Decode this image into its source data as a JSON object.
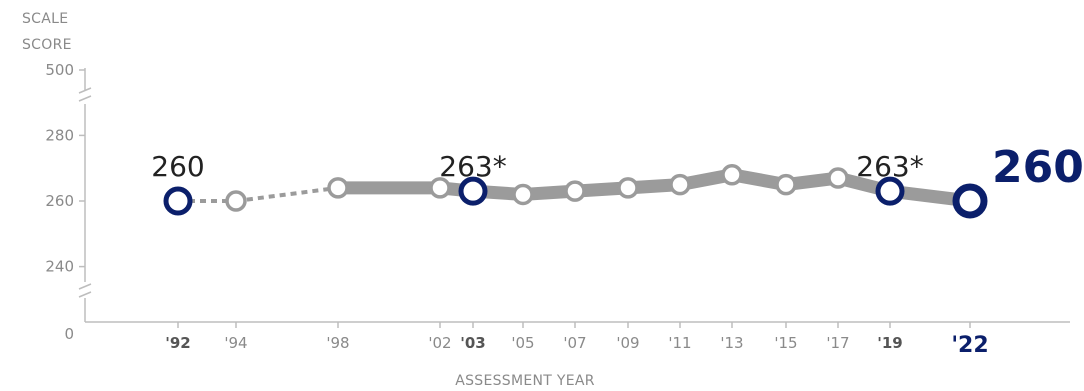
{
  "chart_data": {
    "type": "line",
    "ylabel": [
      "SCALE",
      "SCORE"
    ],
    "xlabel": "ASSESSMENT YEAR",
    "y_ticks": [
      {
        "value": 500,
        "label": "500"
      },
      {
        "value": 280,
        "label": "280"
      },
      {
        "value": 260,
        "label": "260"
      },
      {
        "value": 240,
        "label": "240"
      },
      {
        "value": 0,
        "label": "0"
      }
    ],
    "y_axis_break": true,
    "x_ticks": [
      {
        "year": 1992,
        "label": "'92",
        "style": "bold"
      },
      {
        "year": 1994,
        "label": "'94",
        "style": "normal"
      },
      {
        "year": 1998,
        "label": "'98",
        "style": "normal"
      },
      {
        "year": 2002,
        "label": "'02",
        "style": "normal"
      },
      {
        "year": 2003,
        "label": "'03",
        "style": "bold"
      },
      {
        "year": 2005,
        "label": "'05",
        "style": "normal"
      },
      {
        "year": 2007,
        "label": "'07",
        "style": "normal"
      },
      {
        "year": 2009,
        "label": "'09",
        "style": "normal"
      },
      {
        "year": 2011,
        "label": "'11",
        "style": "normal"
      },
      {
        "year": 2013,
        "label": "'13",
        "style": "normal"
      },
      {
        "year": 2015,
        "label": "'15",
        "style": "normal"
      },
      {
        "year": 2017,
        "label": "'17",
        "style": "normal"
      },
      {
        "year": 2019,
        "label": "'19",
        "style": "bold"
      },
      {
        "year": 2022,
        "label": "'22",
        "style": "last"
      }
    ],
    "series": [
      {
        "x": [
          1992,
          1994,
          1998,
          2002,
          2003,
          2005,
          2007,
          2009,
          2011,
          2013,
          2015,
          2017,
          2019,
          2022
        ],
        "values": [
          260,
          260,
          264,
          264,
          263,
          262,
          263,
          264,
          265,
          268,
          265,
          267,
          263,
          260
        ],
        "dashed_until": 1998,
        "highlighted": [
          1992,
          2003,
          2019,
          2022
        ]
      }
    ],
    "annotations": [
      {
        "year": 1992,
        "text": "260",
        "style": "normal"
      },
      {
        "year": 2003,
        "text": "263*",
        "style": "normal"
      },
      {
        "year": 2019,
        "text": "263*",
        "style": "normal"
      },
      {
        "year": 2022,
        "text": "260",
        "style": "last"
      }
    ],
    "colors": {
      "line": "#9b9b9b",
      "highlight": "#0b1f6b",
      "axis": "#bdbdbd",
      "tick_text": "#8a8a8a"
    }
  }
}
